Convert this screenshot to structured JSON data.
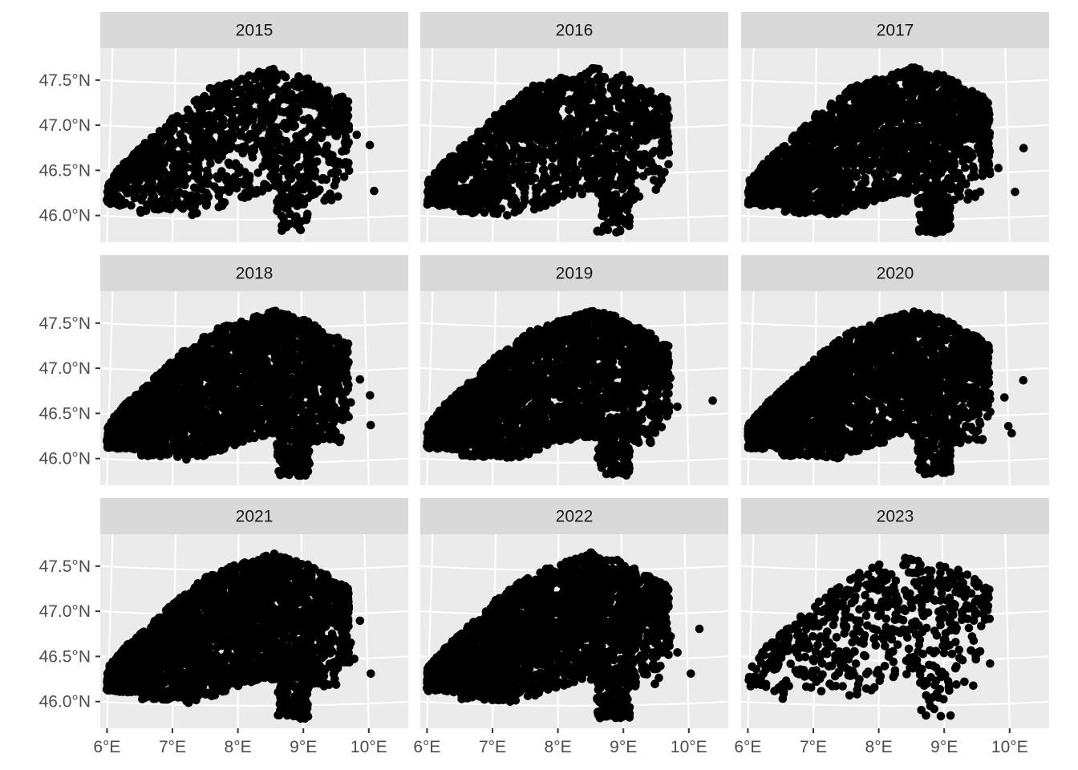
{
  "chart_data": {
    "type": "scatter",
    "title": "",
    "xlabel": "",
    "ylabel": "",
    "projection": "map (longitude/latitude)",
    "xlim": [
      5.85,
      10.65
    ],
    "ylim": [
      45.75,
      47.9
    ],
    "grid": true,
    "x_ticks": [
      6,
      7,
      8,
      9,
      10
    ],
    "x_tick_labels": [
      "6°E",
      "7°E",
      "8°E",
      "9°E",
      "10°E"
    ],
    "y_ticks": [
      46.0,
      46.5,
      47.0,
      47.5
    ],
    "y_tick_labels": [
      "46.0°N",
      "46.5°N",
      "47.0°N",
      "47.5°N"
    ],
    "point_color": "#000000",
    "panel_background": "#ebebeb",
    "strip_background": "#d9d9d9",
    "facet_layout": "3x3",
    "facets": [
      {
        "label": "2015",
        "density": 0.42,
        "extra_points": [
          [
            10.05,
            46.8
          ],
          [
            10.1,
            46.29
          ],
          [
            9.85,
            46.92
          ],
          [
            8.95,
            45.89
          ]
        ]
      },
      {
        "label": "2016",
        "density": 0.58,
        "extra_points": [
          [
            9.6,
            46.48
          ],
          [
            9.55,
            46.38
          ],
          [
            8.95,
            45.88
          ],
          [
            9.6,
            46.7
          ]
        ]
      },
      {
        "label": "2017",
        "density": 0.8,
        "extra_points": [
          [
            10.25,
            46.76
          ],
          [
            10.1,
            46.28
          ],
          [
            9.85,
            46.55
          ],
          [
            9.72,
            46.9
          ]
        ]
      },
      {
        "label": "2018",
        "density": 1.0,
        "extra_points": [
          [
            10.05,
            46.72
          ],
          [
            10.05,
            46.39
          ],
          [
            9.9,
            46.9
          ],
          [
            9.75,
            46.65
          ]
        ]
      },
      {
        "label": "2019",
        "density": 0.95,
        "extra_points": [
          [
            10.4,
            46.65
          ],
          [
            9.85,
            46.6
          ],
          [
            9.6,
            46.38
          ],
          [
            9.75,
            46.92
          ]
        ]
      },
      {
        "label": "2020",
        "density": 1.0,
        "extra_points": [
          [
            10.25,
            46.88
          ],
          [
            10.05,
            46.3
          ],
          [
            9.95,
            46.7
          ],
          [
            10.0,
            46.38
          ]
        ]
      },
      {
        "label": "2021",
        "density": 1.0,
        "extra_points": [
          [
            10.05,
            46.33
          ],
          [
            9.8,
            46.5
          ],
          [
            9.75,
            46.68
          ],
          [
            9.9,
            46.92
          ]
        ]
      },
      {
        "label": "2022",
        "density": 0.95,
        "extra_points": [
          [
            10.2,
            46.82
          ],
          [
            10.05,
            46.33
          ],
          [
            9.85,
            46.57
          ],
          [
            9.75,
            46.75
          ]
        ]
      },
      {
        "label": "2023",
        "density": 0.18,
        "extra_points": [
          [
            9.72,
            46.45
          ],
          [
            9.6,
            47.1
          ],
          [
            9.4,
            46.85
          ],
          [
            8.95,
            45.88
          ]
        ]
      }
    ]
  }
}
